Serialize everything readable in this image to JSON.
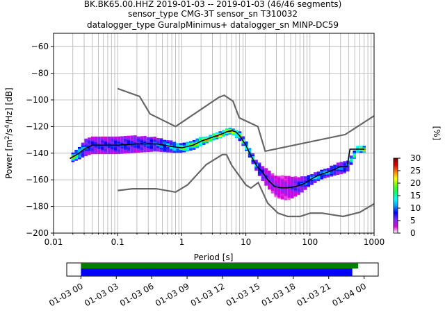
{
  "chart_data": {
    "type": "heatmap",
    "title_lines": [
      "BK.BK65.00.HHZ   2019-01-03 -- 2019-01-03  (46/46 segments)",
      "sensor_type CMG-3T sensor_sn T310032",
      "datalogger_type GuralpMinimus+ datalogger_sn MINP-DC59"
    ],
    "xlabel": "Period [s]",
    "ylabel_parts": {
      "pre": "Power [m",
      "s1": "2",
      "mid1": "/s",
      "s2": "4",
      "post": "/Hz] [dB]"
    },
    "xscale": "log",
    "xlim": [
      0.01,
      1000
    ],
    "ylim": [
      -200,
      -50
    ],
    "x_ticks": [
      {
        "value": 0.01,
        "label": "0.01"
      },
      {
        "value": 0.1,
        "label": "0.1"
      },
      {
        "value": 1,
        "label": "1"
      },
      {
        "value": 10,
        "label": "10"
      },
      {
        "value": 100,
        "label": "100"
      },
      {
        "value": 1000,
        "label": "1000"
      }
    ],
    "y_ticks": [
      {
        "value": -60,
        "label": "−60"
      },
      {
        "value": -80,
        "label": "−80"
      },
      {
        "value": -100,
        "label": "−100"
      },
      {
        "value": -120,
        "label": "−120"
      },
      {
        "value": -140,
        "label": "−140"
      },
      {
        "value": -160,
        "label": "−160"
      },
      {
        "value": -180,
        "label": "−180"
      },
      {
        "value": -200,
        "label": "−200"
      }
    ],
    "grid": true,
    "colorbar": {
      "label": "[%]",
      "range": [
        0,
        30
      ],
      "ticks": [
        {
          "value": 0,
          "label": "0"
        },
        {
          "value": 5,
          "label": "5"
        },
        {
          "value": 10,
          "label": "10"
        },
        {
          "value": 15,
          "label": "15"
        },
        {
          "value": 20,
          "label": "20"
        },
        {
          "value": 25,
          "label": "25"
        },
        {
          "value": 30,
          "label": "30"
        }
      ],
      "colormap_stops": [
        "#ffffff",
        "#d900d9",
        "#7b2bff",
        "#0000ff",
        "#00a0ff",
        "#00ffff",
        "#00ff66",
        "#66ff00",
        "#ffff00",
        "#ff7f00",
        "#e00000",
        "#800000"
      ]
    },
    "mean_psd": {
      "color": "#000000",
      "period": [
        0.018,
        0.025,
        0.03,
        0.04,
        0.06,
        0.1,
        0.2,
        0.4,
        0.7,
        1.0,
        1.5,
        2.0,
        3.0,
        4.0,
        5.0,
        6.0,
        7.0,
        8.0,
        10,
        12,
        15,
        18,
        22,
        28,
        35,
        45,
        60,
        80,
        100,
        130,
        170,
        220,
        300,
        380,
        420,
        550,
        700
      ],
      "power": [
        -144,
        -140,
        -137,
        -134,
        -134,
        -134,
        -133,
        -133,
        -135,
        -136,
        -134,
        -131,
        -128,
        -126,
        -124,
        -123,
        -124,
        -127,
        -134,
        -142,
        -150,
        -154,
        -160,
        -165,
        -166,
        -166,
        -165,
        -163,
        -160,
        -157,
        -155,
        -153,
        -150,
        -150,
        -137,
        -137,
        -137
      ]
    },
    "noise_models": {
      "color": "#666666",
      "high": {
        "period": [
          0.1,
          0.22,
          0.32,
          0.8,
          3.8,
          4.6,
          6.3,
          7.9,
          15.4,
          20,
          354.8,
          1000
        ],
        "power": [
          -91.5,
          -97.4,
          -110.5,
          -120,
          -98,
          -96.5,
          -101,
          -113.5,
          -120,
          -138.5,
          -126,
          -112
        ]
      },
      "low": {
        "period": [
          0.1,
          0.17,
          0.4,
          0.8,
          1.24,
          2.4,
          4.3,
          5.0,
          6.0,
          10,
          12,
          15.6,
          21.9,
          31.6,
          45,
          70,
          101,
          154,
          328,
          600,
          1000
        ],
        "power": [
          -168,
          -166.7,
          -166.7,
          -169.2,
          -163.7,
          -148.6,
          -141.1,
          -141.1,
          -149,
          -163.8,
          -166.2,
          -162.1,
          -177.5,
          -185,
          -187.5,
          -187.5,
          -185,
          -185,
          -187.5,
          -184.4,
          -178
        ]
      }
    },
    "psd_distribution": [
      {
        "period": 0.02,
        "center": -143,
        "half_width": 3,
        "density": 24
      },
      {
        "period": 0.025,
        "center": -140,
        "half_width": 4,
        "density": 18
      },
      {
        "period": 0.03,
        "center": -136,
        "half_width": 6,
        "density": 12
      },
      {
        "period": 0.04,
        "center": -134,
        "half_width": 6,
        "density": 10
      },
      {
        "period": 0.06,
        "center": -134,
        "half_width": 6,
        "density": 10
      },
      {
        "period": 0.1,
        "center": -134,
        "half_width": 6,
        "density": 11
      },
      {
        "period": 0.2,
        "center": -133,
        "half_width": 6,
        "density": 10
      },
      {
        "period": 0.4,
        "center": -133,
        "half_width": 5,
        "density": 12
      },
      {
        "period": 0.7,
        "center": -135,
        "half_width": 4,
        "density": 16
      },
      {
        "period": 1.0,
        "center": -136,
        "half_width": 3,
        "density": 22
      },
      {
        "period": 1.5,
        "center": -134,
        "half_width": 3,
        "density": 24
      },
      {
        "period": 2.0,
        "center": -131,
        "half_width": 3,
        "density": 26
      },
      {
        "period": 3.0,
        "center": -128,
        "half_width": 2,
        "density": 28
      },
      {
        "period": 4.0,
        "center": -126,
        "half_width": 2,
        "density": 28
      },
      {
        "period": 5.0,
        "center": -124,
        "half_width": 2,
        "density": 28
      },
      {
        "period": 6.0,
        "center": -123,
        "half_width": 2,
        "density": 28
      },
      {
        "period": 8.0,
        "center": -127,
        "half_width": 3,
        "density": 22
      },
      {
        "period": 10,
        "center": -134,
        "half_width": 3,
        "density": 20
      },
      {
        "period": 15,
        "center": -150,
        "half_width": 4,
        "density": 14
      },
      {
        "period": 20,
        "center": -157,
        "half_width": 6,
        "density": 8
      },
      {
        "period": 30,
        "center": -165,
        "half_width": 8,
        "density": 6
      },
      {
        "period": 45,
        "center": -166,
        "half_width": 9,
        "density": 6
      },
      {
        "period": 70,
        "center": -164,
        "half_width": 6,
        "density": 10
      },
      {
        "period": 100,
        "center": -160,
        "half_width": 4,
        "density": 14
      },
      {
        "period": 150,
        "center": -156,
        "half_width": 3,
        "density": 16
      },
      {
        "period": 250,
        "center": -152,
        "half_width": 4,
        "density": 12
      },
      {
        "period": 380,
        "center": -150,
        "half_width": 4,
        "density": 12
      },
      {
        "period": 550,
        "center": -137,
        "half_width": 2,
        "density": 26
      },
      {
        "period": 700,
        "center": -137,
        "half_width": 2,
        "density": 26
      }
    ],
    "timeline": {
      "tick_labels": [
        "01-03 00",
        "01-03 03",
        "01-03 06",
        "01-03 09",
        "01-03 12",
        "01-03 15",
        "01-03 18",
        "01-03 21",
        "01-04 00"
      ],
      "tick_hours": [
        0,
        3,
        6,
        9,
        12,
        15,
        18,
        21,
        24
      ],
      "range_hours": [
        -1.2,
        25.2
      ],
      "data_coverage": {
        "start_hour": 0,
        "end_hour": 23.5,
        "color": "#008000"
      },
      "psd_coverage": {
        "start_hour": 0,
        "end_hour": 23.0,
        "color": "#0000ff"
      }
    }
  }
}
